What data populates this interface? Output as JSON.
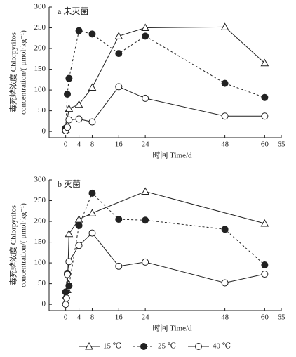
{
  "chart_data": [
    {
      "type": "line",
      "title": "a 未灭菌",
      "xlabel": "时间 Time/d",
      "ylabel": [
        "毒死蜱浓度 Chlorpyrifos",
        "concentration/( μmol·kg⁻¹)"
      ],
      "xlim": [
        -5,
        65
      ],
      "xticks": [
        0,
        4,
        8,
        16,
        24,
        48,
        60,
        65
      ],
      "ylim": [
        -15,
        300
      ],
      "yticks": [
        0,
        50,
        100,
        150,
        200,
        250,
        300
      ],
      "series": [
        {
          "name": "15 ℃",
          "color": "#222222",
          "marker": "triangle",
          "filled": false,
          "dashed": false,
          "x": [
            0,
            1,
            4,
            8,
            16,
            24,
            48,
            60
          ],
          "values": [
            5,
            55,
            65,
            106,
            230,
            250,
            252,
            165
          ]
        },
        {
          "name": "25 ℃",
          "color": "#222222",
          "marker": "circle",
          "filled": true,
          "dashed": true,
          "x": [
            0,
            0.5,
            1,
            4,
            8,
            16,
            24,
            48,
            60
          ],
          "values": [
            8,
            90,
            128,
            243,
            235,
            188,
            230,
            116,
            82
          ]
        },
        {
          "name": "40 ℃",
          "color": "#222222",
          "marker": "circle",
          "filled": false,
          "dashed": false,
          "x": [
            0,
            0.5,
            1,
            4,
            8,
            16,
            24,
            48,
            60
          ],
          "values": [
            2,
            10,
            28,
            30,
            23,
            108,
            80,
            37,
            37
          ]
        }
      ]
    },
    {
      "type": "line",
      "title": "b 灭菌",
      "xlabel": "时间 Time/d",
      "ylabel": [
        "毒死蜱浓度 Chlorpyrifos",
        "concentration/( μmol·kg⁻¹)"
      ],
      "xlim": [
        -5,
        65
      ],
      "xticks": [
        0,
        4,
        8,
        16,
        24,
        48,
        60,
        65
      ],
      "ylim": [
        -15,
        300
      ],
      "yticks": [
        0,
        50,
        100,
        150,
        200,
        250,
        300
      ],
      "series": [
        {
          "name": "15 ℃",
          "color": "#222222",
          "marker": "triangle",
          "filled": false,
          "dashed": false,
          "x": [
            0,
            0.5,
            1,
            4,
            8,
            24,
            60
          ],
          "values": [
            20,
            35,
            170,
            205,
            220,
            272,
            195
          ]
        },
        {
          "name": "25 ℃",
          "color": "#222222",
          "marker": "circle",
          "filled": true,
          "dashed": true,
          "x": [
            0,
            0.5,
            1,
            4,
            8,
            16,
            24,
            48,
            60
          ],
          "values": [
            30,
            75,
            45,
            190,
            268,
            205,
            203,
            181,
            95
          ]
        },
        {
          "name": "40 ℃",
          "color": "#222222",
          "marker": "circle",
          "filled": false,
          "dashed": false,
          "x": [
            0,
            0.25,
            0.5,
            1,
            4,
            8,
            16,
            24,
            48,
            60
          ],
          "values": [
            0,
            15,
            72,
            103,
            142,
            172,
            92,
            102,
            52,
            73
          ]
        }
      ]
    }
  ]
}
